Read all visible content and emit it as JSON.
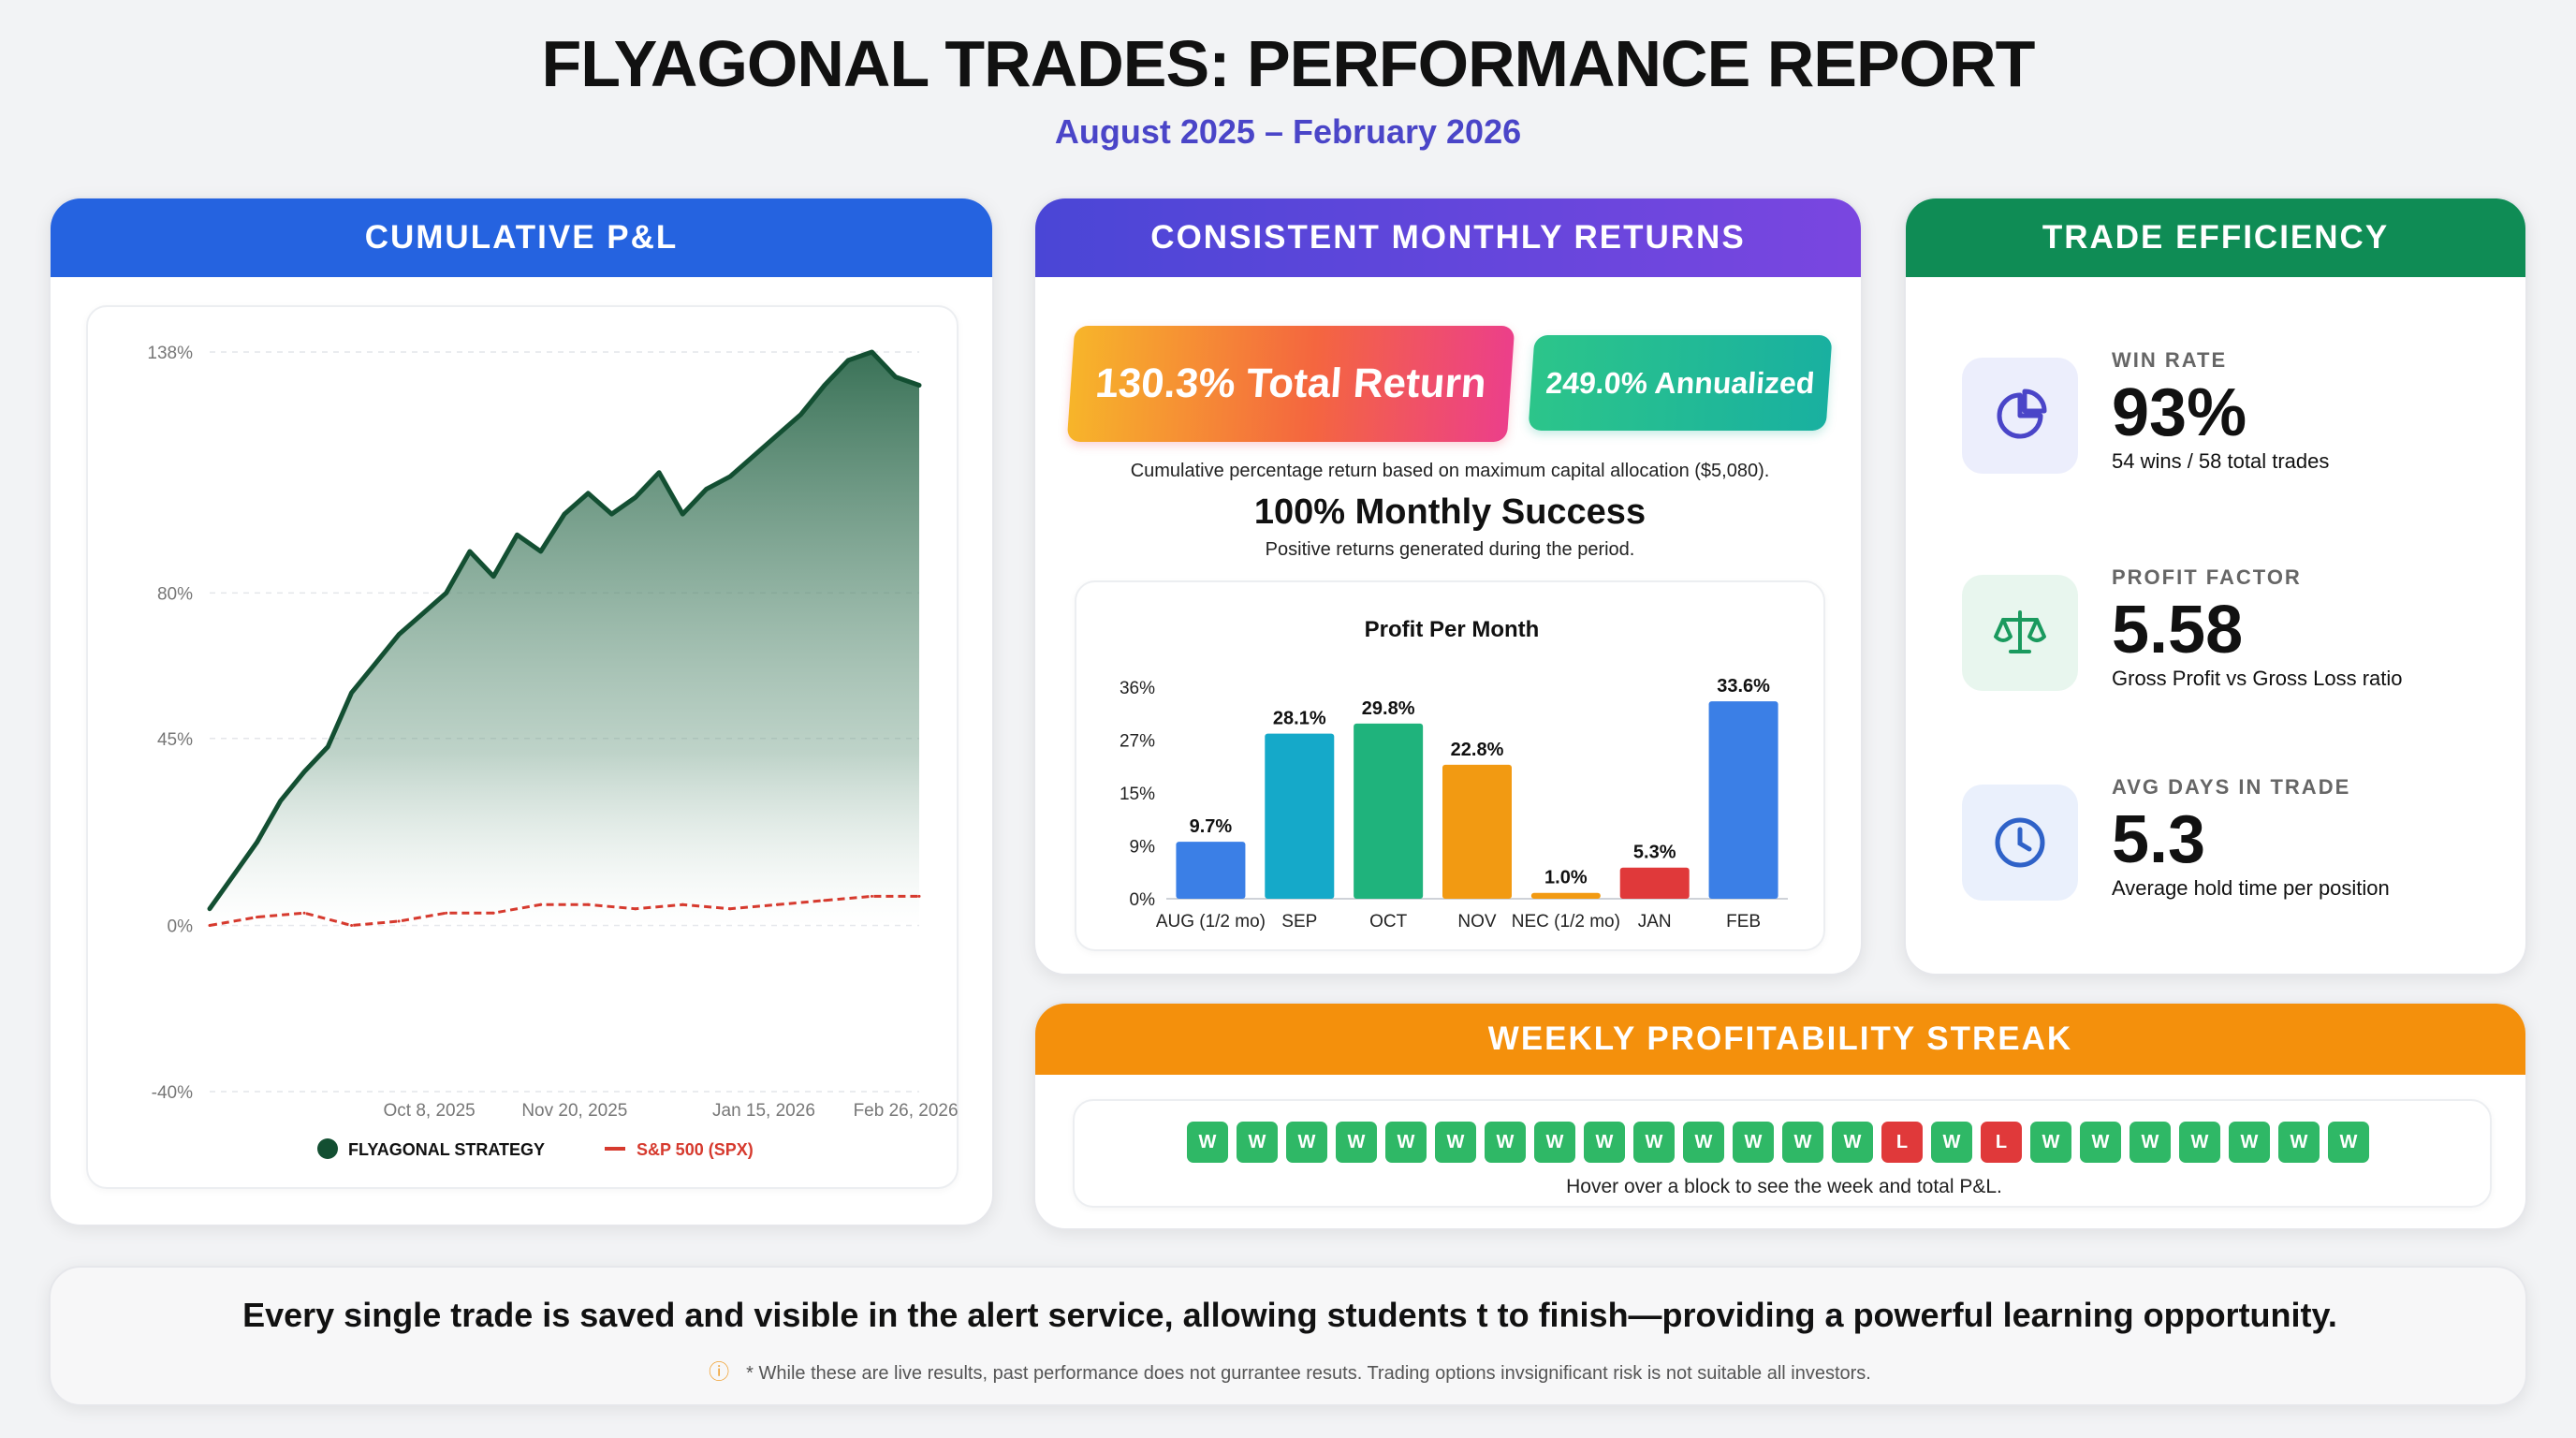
{
  "header": {
    "title": "FLYAGONAL TRADES: PERFORMANCE REPORT",
    "subtitle": "August 2025 – February 2026"
  },
  "pnl_card": {
    "heading": "CUMULATIVE P&L"
  },
  "monthly_card": {
    "heading": "CONSISTENT MONTHLY RETURNS",
    "total_return": "130.3% Total Return",
    "annualized": "249.0% Annualized",
    "note": "Cumulative percentage return based on maximum capital allocation ($5,080).",
    "success_title": "100% Monthly Success",
    "success_note": "Positive returns generated during the period."
  },
  "efficiency_card": {
    "heading": "TRADE EFFICIENCY",
    "items": [
      {
        "label": "WIN RATE",
        "value": "93%",
        "sub": "54 wins / 58 total trades",
        "icon": "pie-chart-icon"
      },
      {
        "label": "PROFIT FACTOR",
        "value": "5.58",
        "sub": "Gross Profit vs Gross Loss ratio",
        "icon": "scales-icon"
      },
      {
        "label": "AVG DAYS IN TRADE",
        "value": "5.3",
        "sub": "Average hold time per position",
        "icon": "clock-icon"
      }
    ]
  },
  "streak_card": {
    "heading": "WEEKLY PROFITABILITY STREAK",
    "weeks": [
      "W",
      "W",
      "W",
      "W",
      "W",
      "W",
      "W",
      "W",
      "W",
      "W",
      "W",
      "W",
      "W",
      "W",
      "L",
      "W",
      "L",
      "W",
      "W",
      "W",
      "W",
      "W",
      "W",
      "W"
    ],
    "hint": "Hover over a block to see the week and total P&L."
  },
  "footer": {
    "main": "Every single trade is saved and visible in the alert service, allowing students t to finish—providing a powerful learning opportunity.",
    "disclaimer": "* While these are live results, past performance does not gurrantee resuts. Trading options invsignificant risk is not suitable  all investors."
  },
  "colors": {
    "pnl_header": "#2563e0",
    "monthly_header": "#5a46d8",
    "efficiency_header": "#0f8c55",
    "streak_header": "#f4900c",
    "strategy_line": "#134f32",
    "spx_line": "#d63a2e",
    "win": "#2fb866",
    "loss": "#e0393a"
  },
  "chart_data": [
    {
      "type": "area",
      "title": "",
      "xlabel": "",
      "ylabel": "",
      "y_ticks": [
        "138%",
        "80%",
        "45%",
        "0%",
        "-40%"
      ],
      "x_ticks": [
        "Oct 8, 2025",
        "Nov 20, 2025",
        "Jan 15, 2026",
        "Feb 26, 2026"
      ],
      "ylim": [
        -40,
        138
      ],
      "grid": true,
      "legend_position": "bottom",
      "series": [
        {
          "name": "FLYAGONAL STRATEGY",
          "style": "area",
          "x": [
            "2025-08-04",
            "2025-08-11",
            "2025-08-18",
            "2025-08-25",
            "2025-09-01",
            "2025-09-08",
            "2025-09-15",
            "2025-09-22",
            "2025-09-29",
            "2025-10-06",
            "2025-10-13",
            "2025-10-20",
            "2025-10-27",
            "2025-11-03",
            "2025-11-10",
            "2025-11-17",
            "2025-11-24",
            "2025-12-01",
            "2025-12-08",
            "2025-12-15",
            "2025-12-22",
            "2025-12-29",
            "2026-01-05",
            "2026-01-12",
            "2026-01-19",
            "2026-01-26",
            "2026-02-02",
            "2026-02-09",
            "2026-02-16",
            "2026-02-23",
            "2026-03-02"
          ],
          "values": [
            4,
            12,
            20,
            30,
            37,
            43,
            56,
            63,
            70,
            75,
            80,
            90,
            84,
            94,
            90,
            99,
            104,
            99,
            103,
            109,
            99,
            105,
            108,
            113,
            118,
            123,
            130,
            136,
            138,
            132,
            130
          ]
        },
        {
          "name": "S&P 500 (SPX)",
          "style": "dashed",
          "x": [
            "2025-08-04",
            "2025-08-18",
            "2025-09-01",
            "2025-09-15",
            "2025-09-29",
            "2025-10-13",
            "2025-10-27",
            "2025-11-10",
            "2025-11-24",
            "2025-12-08",
            "2025-12-22",
            "2026-01-05",
            "2026-01-19",
            "2026-02-02",
            "2026-02-16",
            "2026-03-02"
          ],
          "values": [
            0,
            2,
            3,
            0,
            1,
            3,
            3,
            5,
            5,
            4,
            5,
            4,
            5,
            6,
            7,
            7
          ]
        }
      ]
    },
    {
      "type": "bar",
      "title": "Profit Per Month",
      "xlabel": "",
      "ylabel": "",
      "y_ticks": [
        "36%",
        "27%",
        "15%",
        "9%",
        "0%"
      ],
      "ylim": [
        0,
        36
      ],
      "categories": [
        "AUG (1/2 mo)",
        "SEP",
        "OCT",
        "NOV",
        "NEC (1/2 mo)",
        "JAN",
        "FEB"
      ],
      "values": [
        9.7,
        28.1,
        29.8,
        22.8,
        1.0,
        5.3,
        33.6
      ],
      "value_labels": [
        "9.7%",
        "28.1%",
        "29.8%",
        "22.8%",
        "1.0%",
        "5.3%",
        "33.6%"
      ],
      "bar_colors": [
        "#3b7fe6",
        "#15a9c9",
        "#1fb37c",
        "#f29a12",
        "#f29a12",
        "#e0393a",
        "#3b7fe6"
      ]
    }
  ]
}
